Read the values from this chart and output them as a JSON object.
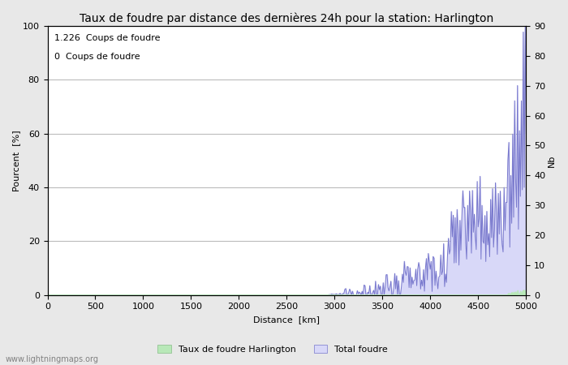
{
  "title": "Taux de foudre par distance des dernières 24h pour la station: Harlington",
  "xlabel": "Distance  [km]",
  "ylabel_left": "Pourcent  [%]",
  "ylabel_right": "Nb",
  "annotation1": "1.226  Coups de foudre",
  "annotation2": "0  Coups de foudre",
  "watermark": "www.lightningmaps.org",
  "legend1": "Taux de foudre Harlington",
  "legend2": "Total foudre",
  "xlim": [
    0,
    5000
  ],
  "ylim_left": [
    0,
    100
  ],
  "ylim_right": [
    0,
    90
  ],
  "xticks": [
    0,
    500,
    1000,
    1500,
    2000,
    2500,
    3000,
    3500,
    4000,
    4500,
    5000
  ],
  "yticks_left": [
    0,
    20,
    40,
    60,
    80,
    100
  ],
  "yticks_right": [
    0,
    10,
    20,
    30,
    40,
    50,
    60,
    70,
    80,
    90
  ],
  "bg_color": "#e8e8e8",
  "plot_bg_color": "#ffffff",
  "grid_color": "#bbbbbb",
  "green_fill_color": "#b8e8b8",
  "blue_fill_color": "#d8d8f8",
  "blue_line_color": "#7777cc",
  "title_fontsize": 10,
  "label_fontsize": 8,
  "tick_fontsize": 8,
  "annotation_fontsize": 8
}
